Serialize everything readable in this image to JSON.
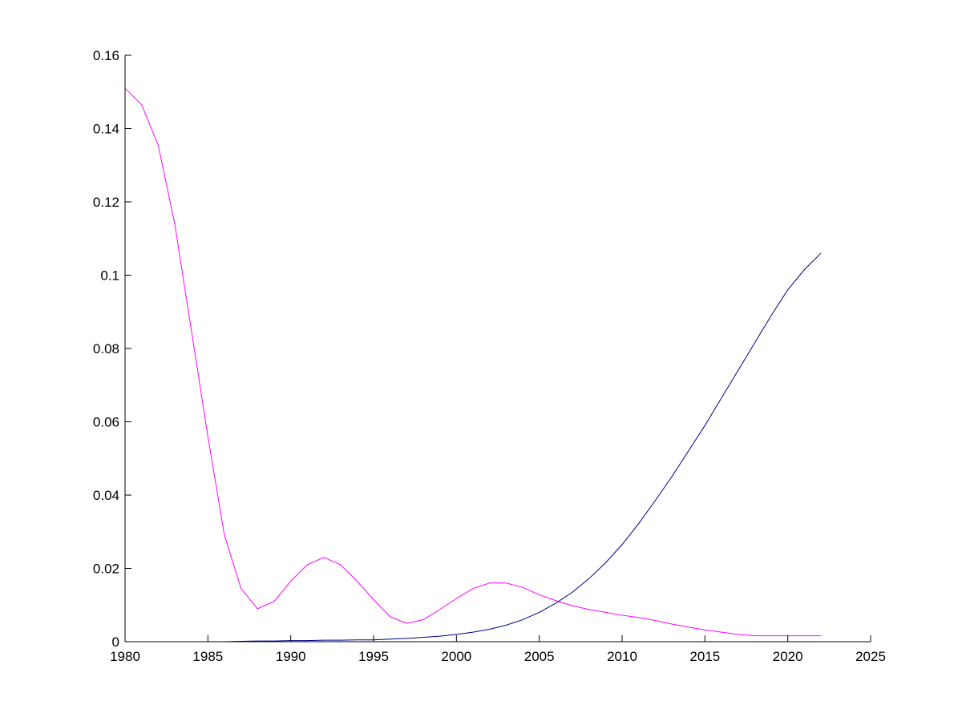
{
  "chart_data": {
    "type": "line",
    "title": "",
    "xlabel": "",
    "ylabel": "",
    "xlim": [
      1980,
      2025
    ],
    "ylim": [
      0,
      0.16
    ],
    "grid": false,
    "x_ticks": [
      1980,
      1985,
      1990,
      1995,
      2000,
      2005,
      2010,
      2015,
      2020,
      2025
    ],
    "x_tick_labels": [
      "1980",
      "1985",
      "1990",
      "1995",
      "2000",
      "2005",
      "2010",
      "2015",
      "2020",
      "2025"
    ],
    "y_ticks": [
      0,
      0.02,
      0.04,
      0.06,
      0.08,
      0.1,
      0.12,
      0.14,
      0.16
    ],
    "y_tick_labels": [
      "0",
      "0.02",
      "0.04",
      "0.06",
      "0.08",
      "0.1",
      "0.12",
      "0.14",
      "0.16"
    ],
    "x": [
      1980,
      1981,
      1982,
      1983,
      1984,
      1985,
      1986,
      1987,
      1988,
      1989,
      1990,
      1991,
      1992,
      1993,
      1994,
      1995,
      1996,
      1997,
      1998,
      1999,
      2000,
      2001,
      2002,
      2003,
      2004,
      2005,
      2006,
      2007,
      2008,
      2009,
      2010,
      2011,
      2012,
      2013,
      2014,
      2015,
      2016,
      2017,
      2018,
      2019,
      2020,
      2021,
      2022
    ],
    "series": [
      {
        "color": "#ff00ff",
        "values": [
          0.151,
          0.1465,
          0.1355,
          0.114,
          0.085,
          0.056,
          0.029,
          0.0145,
          0.009,
          0.011,
          0.0165,
          0.021,
          0.023,
          0.021,
          0.0165,
          0.0115,
          0.0068,
          0.005,
          0.006,
          0.0088,
          0.0118,
          0.0145,
          0.016,
          0.016,
          0.0148,
          0.0128,
          0.0112,
          0.0098,
          0.0088,
          0.008,
          0.0072,
          0.0066,
          0.0058,
          0.0048,
          0.004,
          0.0032,
          0.0026,
          0.002,
          0.0016,
          0.0016,
          0.0016,
          0.0016,
          0.0016
        ]
      },
      {
        "color": "#00008b",
        "values": [
          0,
          0,
          0,
          0,
          0,
          0,
          0,
          0.0001,
          0.0002,
          0.0002,
          0.0003,
          0.0003,
          0.0004,
          0.0004,
          0.0005,
          0.0005,
          0.0007,
          0.0009,
          0.0012,
          0.0015,
          0.002,
          0.0026,
          0.0034,
          0.0045,
          0.006,
          0.008,
          0.0105,
          0.0135,
          0.0172,
          0.0215,
          0.0265,
          0.0322,
          0.0385,
          0.045,
          0.052,
          0.059,
          0.0665,
          0.074,
          0.0815,
          0.089,
          0.096,
          0.1015,
          0.106
        ]
      }
    ]
  }
}
